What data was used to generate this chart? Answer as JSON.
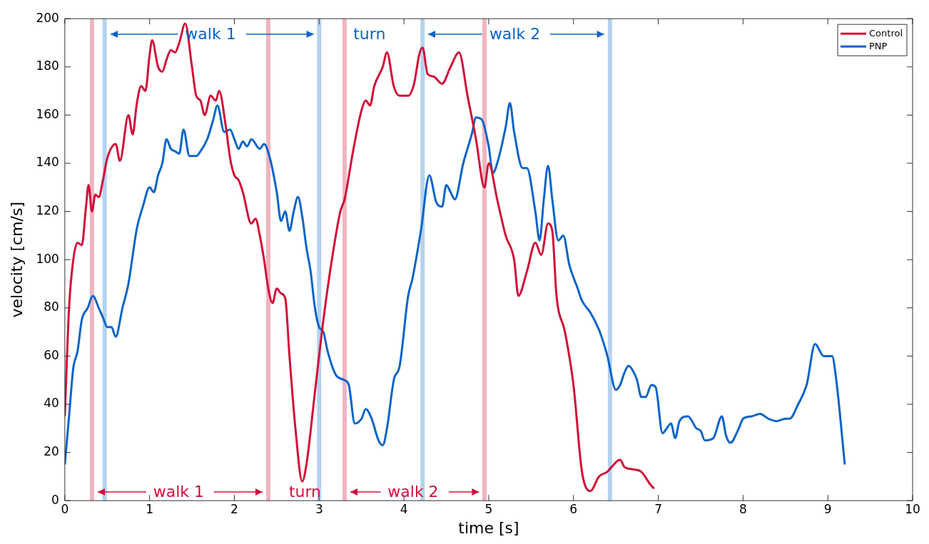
{
  "chart_data": {
    "type": "line",
    "xlabel": "time [s]",
    "ylabel": "velocity [cm/s]",
    "xlim": [
      0,
      10
    ],
    "ylim": [
      0,
      200
    ],
    "xticks": [
      0,
      1,
      2,
      3,
      4,
      5,
      6,
      7,
      8,
      9,
      10
    ],
    "yticks": [
      0,
      20,
      40,
      60,
      80,
      100,
      120,
      140,
      160,
      180,
      200
    ],
    "grid": false,
    "legend": "top right",
    "marker": "none",
    "line_style": "solid",
    "series": [
      {
        "name": "Control",
        "color": "#d0103a",
        "x": [
          0,
          0.05,
          0.1,
          0.15,
          0.2,
          0.25,
          0.28,
          0.32,
          0.36,
          0.4,
          0.45,
          0.5,
          0.6,
          0.65,
          0.75,
          0.8,
          0.85,
          0.9,
          0.95,
          1.0,
          1.03,
          1.1,
          1.15,
          1.2,
          1.25,
          1.3,
          1.35,
          1.42,
          1.5,
          1.55,
          1.6,
          1.65,
          1.72,
          1.78,
          1.82,
          1.9,
          1.95,
          2.0,
          2.05,
          2.1,
          2.2,
          2.25,
          2.3,
          2.35,
          2.4,
          2.45,
          2.5,
          2.55,
          2.6,
          2.65,
          2.72,
          2.8,
          2.85,
          2.95,
          3.05,
          3.15,
          3.25,
          3.3,
          3.4,
          3.5,
          3.55,
          3.6,
          3.65,
          3.75,
          3.8,
          3.88,
          3.95,
          4.05,
          4.12,
          4.18,
          4.22,
          4.28,
          4.35,
          4.45,
          4.55,
          4.65,
          4.75,
          4.85,
          4.95,
          5.0,
          5.1,
          5.2,
          5.3,
          5.35,
          5.45,
          5.55,
          5.62,
          5.7,
          5.75,
          5.8,
          5.9,
          6.0,
          6.1,
          6.2,
          6.3,
          6.4,
          6.45,
          6.55,
          6.6,
          6.7,
          6.8,
          6.9,
          6.95
        ],
        "values": [
          35,
          80,
          100,
          107,
          106,
          122,
          131,
          120,
          127,
          126,
          133,
          142,
          148,
          141,
          160,
          152,
          165,
          172,
          170,
          185,
          191,
          180,
          178,
          183,
          187,
          186,
          190,
          198,
          180,
          168,
          166,
          160,
          168,
          166,
          170,
          155,
          142,
          135,
          133,
          128,
          115,
          117,
          110,
          100,
          88,
          82,
          88,
          86,
          84,
          60,
          30,
          8,
          15,
          45,
          75,
          100,
          120,
          125,
          145,
          162,
          166,
          164,
          172,
          180,
          186,
          172,
          168,
          168,
          173,
          185,
          188,
          177,
          176,
          173,
          180,
          186,
          168,
          150,
          130,
          140,
          125,
          110,
          100,
          85,
          95,
          107,
          102,
          115,
          112,
          85,
          70,
          48,
          12,
          4,
          10,
          12,
          14,
          17,
          14,
          13,
          12,
          7,
          5
        ]
      },
      {
        "name": "PNP",
        "color": "#0a64c8",
        "x": [
          0,
          0.05,
          0.1,
          0.15,
          0.2,
          0.27,
          0.33,
          0.4,
          0.45,
          0.5,
          0.55,
          0.6,
          0.68,
          0.75,
          0.85,
          0.92,
          1.0,
          1.05,
          1.1,
          1.15,
          1.2,
          1.25,
          1.3,
          1.35,
          1.4,
          1.47,
          1.55,
          1.6,
          1.68,
          1.75,
          1.8,
          1.88,
          1.95,
          2.0,
          2.05,
          2.1,
          2.15,
          2.2,
          2.3,
          2.35,
          2.42,
          2.5,
          2.55,
          2.6,
          2.65,
          2.7,
          2.75,
          2.8,
          2.85,
          2.9,
          2.95,
          3.0,
          3.05,
          3.1,
          3.2,
          3.3,
          3.35,
          3.42,
          3.5,
          3.55,
          3.62,
          3.7,
          3.75,
          3.8,
          3.88,
          3.95,
          4.05,
          4.1,
          4.2,
          4.3,
          4.38,
          4.45,
          4.5,
          4.55,
          4.6,
          4.7,
          4.8,
          4.85,
          4.92,
          5.0,
          5.05,
          5.1,
          5.2,
          5.25,
          5.3,
          5.4,
          5.45,
          5.55,
          5.6,
          5.65,
          5.7,
          5.75,
          5.82,
          5.88,
          5.95,
          6.05,
          6.1,
          6.2,
          6.3,
          6.35,
          6.4,
          6.5,
          6.55,
          6.6,
          6.65,
          6.7,
          6.75,
          6.8,
          6.85,
          6.92,
          6.97,
          7.05,
          7.1,
          7.15,
          7.2,
          7.25,
          7.35,
          7.45,
          7.5,
          7.55,
          7.65,
          7.75,
          7.8,
          7.85,
          7.95,
          8.0,
          8.1,
          8.2,
          8.3,
          8.4,
          8.5,
          8.55,
          8.65,
          8.75,
          8.85,
          8.95,
          9.05,
          9.1,
          9.2
        ],
        "values": [
          15,
          35,
          55,
          62,
          75,
          80,
          85,
          80,
          76,
          72,
          72,
          68,
          80,
          90,
          113,
          122,
          130,
          128,
          135,
          140,
          150,
          146,
          145,
          144,
          154,
          143,
          143,
          145,
          150,
          158,
          164,
          153,
          154,
          150,
          146,
          149,
          147,
          150,
          146,
          148,
          142,
          128,
          116,
          120,
          112,
          120,
          126,
          118,
          105,
          95,
          80,
          72,
          70,
          62,
          52,
          50,
          48,
          32,
          34,
          38,
          34,
          25,
          23,
          30,
          50,
          56,
          85,
          92,
          112,
          135,
          124,
          122,
          131,
          128,
          125,
          140,
          152,
          159,
          158,
          147,
          136,
          140,
          155,
          165,
          153,
          138,
          138,
          120,
          108,
          125,
          139,
          125,
          108,
          110,
          98,
          88,
          83,
          78,
          71,
          66,
          60,
          46,
          48,
          53,
          56,
          54,
          50,
          43,
          43,
          48,
          47,
          28,
          30,
          32,
          26,
          33,
          35,
          30,
          29,
          25,
          26,
          35,
          27,
          24,
          30,
          34,
          35,
          36,
          34,
          33,
          34,
          34,
          40,
          48,
          65,
          60,
          60,
          50,
          15
        ]
      }
    ],
    "ref_lines": [
      {
        "axis": "x",
        "value": 0.32,
        "color": "#f0b4c0"
      },
      {
        "axis": "x",
        "value": 2.4,
        "color": "#f0b4c0"
      },
      {
        "axis": "x",
        "value": 3.3,
        "color": "#f0b4c0"
      },
      {
        "axis": "x",
        "value": 4.95,
        "color": "#f0b4c0"
      },
      {
        "axis": "x",
        "value": 0.47,
        "color": "#b4d2f0"
      },
      {
        "axis": "x",
        "value": 3.0,
        "color": "#b4d2f0"
      },
      {
        "axis": "x",
        "value": 4.22,
        "color": "#b4d2f0"
      },
      {
        "axis": "x",
        "value": 6.43,
        "color": "#b4d2f0"
      }
    ],
    "annotations": [
      "walk 1",
      "turn",
      "walk 2",
      "walk 1",
      "turn",
      "walk 2"
    ]
  }
}
